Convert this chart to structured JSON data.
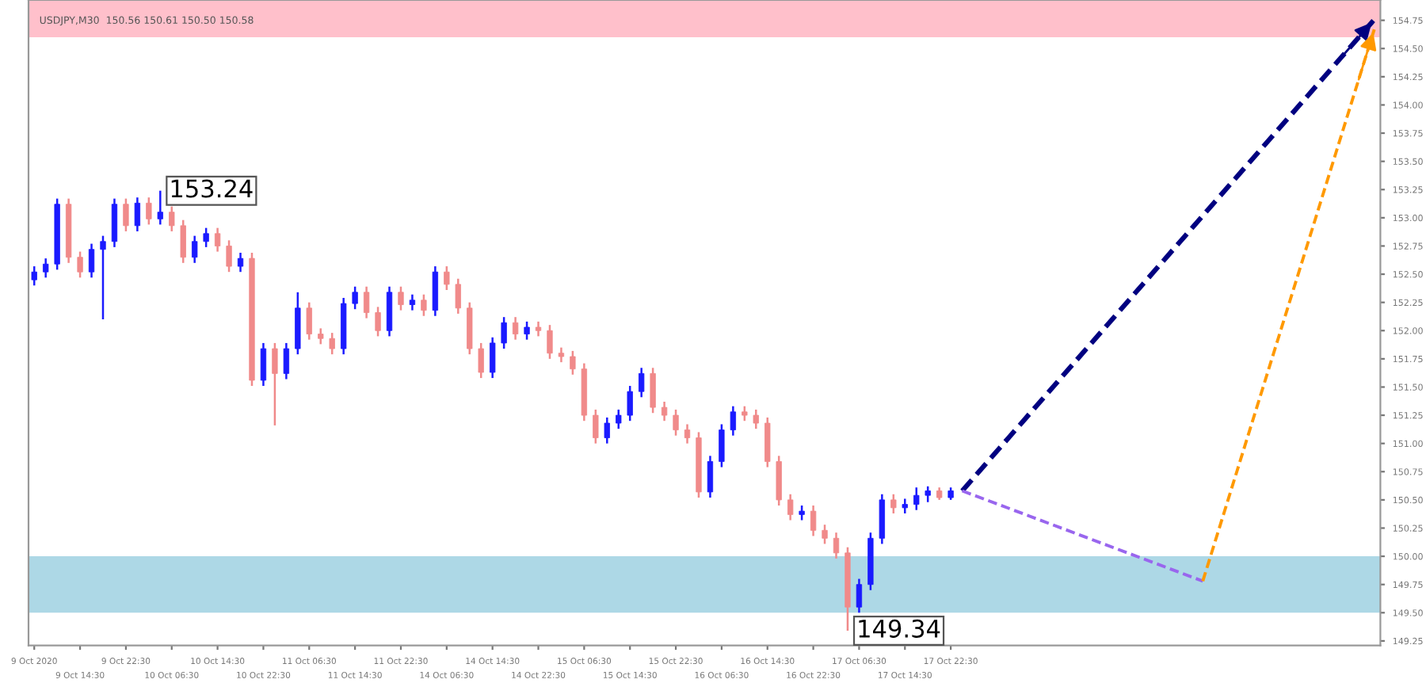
{
  "chart_data": {
    "type": "candlestick",
    "categories": [
      "9 Oct 2020",
      null,
      null,
      null,
      "9 Oct 14:30",
      null,
      null,
      null,
      "9 Oct 22:30",
      null,
      null,
      null,
      "10 Oct 06:30",
      null,
      null,
      null,
      "10 Oct 14:30",
      null,
      null,
      null,
      "10 Oct 22:30",
      null,
      null,
      null,
      "11 Oct 06:30",
      null,
      null,
      null,
      "11 Oct 14:30",
      null,
      null,
      null,
      "11 Oct 22:30",
      null,
      null,
      null,
      "14 Oct 06:30",
      null,
      null,
      null,
      "14 Oct 14:30",
      null,
      null,
      null,
      "14 Oct 22:30",
      null,
      null,
      null,
      "15 Oct 06:30",
      null,
      null,
      null,
      "15 Oct 14:30",
      null,
      null,
      null,
      "15 Oct 22:30",
      null,
      null,
      null,
      "16 Oct 06:30",
      null,
      null,
      null,
      "16 Oct 14:30",
      null,
      null,
      null,
      "16 Oct 22:30",
      null,
      null,
      null,
      "17 Oct 06:30",
      null,
      null,
      null,
      "17 Oct 14:30",
      null,
      null,
      null,
      "17 Oct 22:30",
      null,
      null,
      null,
      null,
      null,
      null,
      null,
      null,
      null,
      null,
      null,
      null,
      null,
      null,
      null,
      null,
      null,
      null,
      null,
      null,
      null,
      null,
      null,
      null,
      null,
      null,
      null,
      null,
      null,
      null,
      null,
      null,
      null,
      null,
      null,
      null,
      null
    ],
    "ohlc": [
      [
        152.45,
        152.57,
        152.4,
        152.52
      ],
      [
        152.52,
        152.64,
        152.47,
        152.59
      ],
      [
        152.59,
        153.17,
        152.54,
        153.12
      ],
      [
        153.12,
        153.17,
        152.6,
        152.65
      ],
      [
        152.65,
        152.7,
        152.47,
        152.52
      ],
      [
        152.52,
        152.77,
        152.47,
        152.72
      ],
      [
        152.72,
        152.84,
        152.1,
        152.79
      ],
      [
        152.79,
        153.17,
        152.74,
        153.12
      ],
      [
        153.12,
        153.17,
        152.88,
        152.93
      ],
      [
        152.93,
        153.18,
        152.88,
        153.13
      ],
      [
        153.13,
        153.18,
        152.94,
        152.99
      ],
      [
        152.99,
        153.24,
        152.94,
        153.05
      ],
      [
        153.05,
        153.1,
        152.88,
        152.93
      ],
      [
        152.93,
        152.98,
        152.6,
        152.65
      ],
      [
        152.65,
        152.84,
        152.6,
        152.79
      ],
      [
        152.79,
        152.91,
        152.74,
        152.86
      ],
      [
        152.86,
        152.91,
        152.7,
        152.75
      ],
      [
        152.75,
        152.8,
        152.52,
        152.57
      ],
      [
        152.57,
        152.69,
        152.52,
        152.64
      ],
      [
        152.64,
        152.69,
        151.51,
        151.56
      ],
      [
        151.56,
        151.89,
        151.51,
        151.84
      ],
      [
        151.84,
        151.89,
        151.16,
        151.62
      ],
      [
        151.62,
        151.89,
        151.57,
        151.84
      ],
      [
        151.84,
        152.34,
        151.79,
        152.2
      ],
      [
        152.2,
        152.25,
        151.92,
        151.97
      ],
      [
        151.97,
        152.02,
        151.88,
        151.93
      ],
      [
        151.93,
        151.98,
        151.79,
        151.84
      ],
      [
        151.84,
        152.29,
        151.79,
        152.24
      ],
      [
        152.24,
        152.39,
        152.19,
        152.34
      ],
      [
        152.34,
        152.39,
        152.11,
        152.16
      ],
      [
        152.16,
        152.21,
        151.95,
        152.0
      ],
      [
        152.0,
        152.39,
        151.95,
        152.34
      ],
      [
        152.34,
        152.39,
        152.18,
        152.23
      ],
      [
        152.23,
        152.32,
        152.18,
        152.27
      ],
      [
        152.27,
        152.32,
        152.13,
        152.18
      ],
      [
        152.18,
        152.57,
        152.13,
        152.52
      ],
      [
        152.52,
        152.57,
        152.36,
        152.41
      ],
      [
        152.41,
        152.46,
        152.15,
        152.2
      ],
      [
        152.2,
        152.25,
        151.79,
        151.84
      ],
      [
        151.84,
        151.89,
        151.58,
        151.63
      ],
      [
        151.63,
        151.94,
        151.58,
        151.89
      ],
      [
        151.89,
        152.12,
        151.84,
        152.07
      ],
      [
        152.07,
        152.12,
        151.92,
        151.97
      ],
      [
        151.97,
        152.08,
        151.92,
        152.03
      ],
      [
        152.03,
        152.08,
        151.95,
        152.0
      ],
      [
        152.0,
        152.05,
        151.75,
        151.8
      ],
      [
        151.8,
        151.85,
        151.72,
        151.77
      ],
      [
        151.77,
        151.82,
        151.61,
        151.66
      ],
      [
        151.66,
        151.71,
        151.2,
        151.25
      ],
      [
        151.25,
        151.3,
        151.0,
        151.05
      ],
      [
        151.05,
        151.23,
        151.0,
        151.18
      ],
      [
        151.18,
        151.3,
        151.13,
        151.25
      ],
      [
        151.25,
        151.51,
        151.2,
        151.46
      ],
      [
        151.46,
        151.67,
        151.41,
        151.62
      ],
      [
        151.62,
        151.67,
        151.27,
        151.32
      ],
      [
        151.32,
        151.37,
        151.2,
        151.25
      ],
      [
        151.25,
        151.3,
        151.07,
        151.12
      ],
      [
        151.12,
        151.17,
        151.0,
        151.05
      ],
      [
        151.05,
        151.1,
        150.52,
        150.57
      ],
      [
        150.57,
        150.89,
        150.52,
        150.84
      ],
      [
        150.84,
        151.17,
        150.79,
        151.12
      ],
      [
        151.12,
        151.33,
        151.07,
        151.28
      ],
      [
        151.28,
        151.33,
        151.2,
        151.25
      ],
      [
        151.25,
        151.3,
        151.13,
        151.18
      ],
      [
        151.18,
        151.23,
        150.79,
        150.84
      ],
      [
        150.84,
        150.89,
        150.45,
        150.5
      ],
      [
        150.5,
        150.55,
        150.32,
        150.37
      ],
      [
        150.37,
        150.45,
        150.32,
        150.4
      ],
      [
        150.4,
        150.45,
        150.18,
        150.23
      ],
      [
        150.23,
        150.28,
        150.11,
        150.16
      ],
      [
        150.16,
        150.21,
        149.98,
        150.03
      ],
      [
        150.03,
        150.08,
        149.34,
        149.55
      ],
      [
        149.55,
        149.8,
        149.5,
        149.75
      ],
      [
        149.75,
        150.21,
        149.7,
        150.16
      ],
      [
        150.16,
        150.55,
        150.11,
        150.5
      ],
      [
        150.5,
        150.55,
        150.38,
        150.43
      ],
      [
        150.43,
        150.51,
        150.38,
        150.46
      ],
      [
        150.46,
        150.61,
        150.41,
        150.54
      ],
      [
        150.54,
        150.62,
        150.48,
        150.58
      ],
      [
        150.58,
        150.61,
        150.5,
        150.52
      ],
      [
        150.52,
        150.61,
        150.5,
        150.58
      ],
      null,
      null,
      null,
      null,
      null,
      null,
      null,
      null,
      null,
      null,
      null,
      null,
      null,
      null,
      null,
      null,
      null,
      null,
      null,
      null,
      null,
      null,
      null,
      null,
      null,
      null,
      null,
      null,
      null,
      null,
      null,
      null,
      null,
      null,
      null,
      null,
      null
    ],
    "colors": [
      "#1a1aff",
      "#1a1aff",
      "#1a1aff",
      "#f08a8a",
      "#f08a8a",
      "#1a1aff",
      "#1a1aff",
      "#1a1aff",
      "#f08a8a",
      "#1a1aff",
      "#f08a8a",
      "#1a1aff",
      "#f08a8a",
      "#f08a8a",
      "#1a1aff",
      "#1a1aff",
      "#f08a8a",
      "#f08a8a",
      "#1a1aff",
      "#f08a8a",
      "#1a1aff",
      "#f08a8a",
      "#1a1aff",
      "#1a1aff",
      "#f08a8a",
      "#f08a8a",
      "#f08a8a",
      "#1a1aff",
      "#1a1aff",
      "#f08a8a",
      "#f08a8a",
      "#1a1aff",
      "#f08a8a",
      "#1a1aff",
      "#f08a8a",
      "#1a1aff",
      "#f08a8a",
      "#f08a8a",
      "#f08a8a",
      "#f08a8a",
      "#1a1aff",
      "#1a1aff",
      "#f08a8a",
      "#1a1aff",
      "#f08a8a",
      "#f08a8a",
      "#f08a8a",
      "#f08a8a",
      "#f08a8a",
      "#f08a8a",
      "#1a1aff",
      "#1a1aff",
      "#1a1aff",
      "#1a1aff",
      "#f08a8a",
      "#f08a8a",
      "#f08a8a",
      "#f08a8a",
      "#f08a8a",
      "#1a1aff",
      "#1a1aff",
      "#1a1aff",
      "#f08a8a",
      "#f08a8a",
      "#f08a8a",
      "#f08a8a",
      "#f08a8a",
      "#1a1aff",
      "#f08a8a",
      "#f08a8a",
      "#f08a8a",
      "#f08a8a",
      "#1a1aff",
      "#1a1aff",
      "#1a1aff",
      "#f08a8a",
      "#1a1aff",
      "#1a1aff",
      "#1a1aff",
      "#f08a8a",
      "#1a1aff",
      null,
      null,
      null,
      null,
      null,
      null,
      null,
      null,
      null,
      null,
      null,
      null,
      null,
      null,
      null,
      null,
      null,
      null,
      null,
      null,
      null,
      null,
      null,
      null,
      null,
      null,
      null,
      null,
      null,
      null,
      null,
      null,
      null,
      null,
      null,
      null,
      null
    ],
    "series": [
      {
        "type": "line",
        "color": "#000080",
        "line_style": "dashed",
        "values": [
          null,
          null,
          null,
          null,
          null,
          null,
          null,
          null,
          null,
          null,
          null,
          null,
          null,
          null,
          null,
          null,
          null,
          null,
          null,
          null,
          null,
          null,
          null,
          null,
          null,
          null,
          null,
          null,
          null,
          null,
          null,
          null,
          null,
          null,
          null,
          null,
          null,
          null,
          null,
          null,
          null,
          null,
          null,
          null,
          null,
          null,
          null,
          null,
          null,
          null,
          null,
          null,
          null,
          null,
          null,
          null,
          null,
          null,
          null,
          null,
          null,
          null,
          null,
          null,
          null,
          null,
          null,
          null,
          null,
          null,
          null,
          null,
          null,
          null,
          null,
          null,
          null,
          null,
          null,
          null,
          null,
          150.58,
          null,
          null,
          null,
          null,
          null,
          null,
          null,
          null,
          null,
          null,
          null,
          null,
          null,
          null,
          null,
          null,
          null,
          null,
          null,
          null,
          null,
          null,
          null,
          null,
          null,
          null,
          null,
          null,
          null,
          null,
          null,
          null,
          null,
          null,
          null,
          154.76
        ]
      },
      {
        "type": "line",
        "color": "#9966ee",
        "line_style": "dashed",
        "values": [
          null,
          null,
          null,
          null,
          null,
          null,
          null,
          null,
          null,
          null,
          null,
          null,
          null,
          null,
          null,
          null,
          null,
          null,
          null,
          null,
          null,
          null,
          null,
          null,
          null,
          null,
          null,
          null,
          null,
          null,
          null,
          null,
          null,
          null,
          null,
          null,
          null,
          null,
          null,
          null,
          null,
          null,
          null,
          null,
          null,
          null,
          null,
          null,
          null,
          null,
          null,
          null,
          null,
          null,
          null,
          null,
          null,
          null,
          null,
          null,
          null,
          null,
          null,
          null,
          null,
          null,
          null,
          null,
          null,
          null,
          null,
          null,
          null,
          null,
          null,
          null,
          null,
          null,
          null,
          null,
          null,
          150.58,
          null,
          null,
          null,
          null,
          null,
          null,
          null,
          null,
          null,
          null,
          null,
          null,
          null,
          null,
          null,
          null,
          null,
          null,
          null,
          null,
          149.78,
          null,
          null,
          null,
          null,
          null,
          null,
          null,
          null,
          null,
          null,
          null,
          null,
          null,
          null,
          null
        ]
      },
      {
        "type": "line",
        "color": "#ff9900",
        "line_style": "dashed",
        "values": [
          null,
          null,
          null,
          null,
          null,
          null,
          null,
          null,
          null,
          null,
          null,
          null,
          null,
          null,
          null,
          null,
          null,
          null,
          null,
          null,
          null,
          null,
          null,
          null,
          null,
          null,
          null,
          null,
          null,
          null,
          null,
          null,
          null,
          null,
          null,
          null,
          null,
          null,
          null,
          null,
          null,
          null,
          null,
          null,
          null,
          null,
          null,
          null,
          null,
          null,
          null,
          null,
          null,
          null,
          null,
          null,
          null,
          null,
          null,
          null,
          null,
          null,
          null,
          null,
          null,
          null,
          null,
          null,
          null,
          null,
          null,
          null,
          null,
          null,
          null,
          null,
          null,
          null,
          null,
          null,
          null,
          null,
          null,
          null,
          null,
          null,
          null,
          null,
          null,
          null,
          null,
          null,
          null,
          null,
          null,
          null,
          null,
          null,
          null,
          null,
          null,
          null,
          149.78,
          null,
          null,
          null,
          null,
          null,
          null,
          null,
          null,
          null,
          null,
          null,
          null,
          null,
          null,
          154.68
        ]
      }
    ],
    "bands": [
      {
        "axis": "y",
        "from": 154.6,
        "to": 154.93,
        "color": "#ffc0cb"
      },
      {
        "axis": "y",
        "from": 149.5,
        "to": 150.0,
        "color": "#add8e6"
      }
    ],
    "annotations": [
      "USDJPY,M30  150.56 150.61 150.50 150.58",
      "153.24",
      "149.34"
    ],
    "ylim": [
      149.21,
      154.93
    ],
    "yticks": [
      {
        "value": 149.25,
        "label": "149.25"
      },
      {
        "value": 149.5,
        "label": "149.50"
      },
      {
        "value": 149.75,
        "label": "149.75"
      },
      {
        "value": 150,
        "label": "150.00"
      },
      {
        "value": 150.25,
        "label": "150.25"
      },
      {
        "value": 150.5,
        "label": "150.50"
      },
      {
        "value": 150.75,
        "label": "150.75"
      },
      {
        "value": 151,
        "label": "151.00"
      },
      {
        "value": 151.25,
        "label": "151.25"
      },
      {
        "value": 151.5,
        "label": "151.50"
      },
      {
        "value": 151.75,
        "label": "151.75"
      },
      {
        "value": 152,
        "label": "152.00"
      },
      {
        "value": 152.25,
        "label": "152.25"
      },
      {
        "value": 152.5,
        "label": "152.50"
      },
      {
        "value": 152.75,
        "label": "152.75"
      },
      {
        "value": 153,
        "label": "153.00"
      },
      {
        "value": 153.25,
        "label": "153.25"
      },
      {
        "value": 153.5,
        "label": "153.50"
      },
      {
        "value": 153.75,
        "label": "153.75"
      },
      {
        "value": 154,
        "label": "154.00"
      },
      {
        "value": 154.25,
        "label": "154.25"
      },
      {
        "value": 154.5,
        "label": "154.50"
      },
      {
        "value": 154.75,
        "label": "154.75"
      }
    ]
  }
}
